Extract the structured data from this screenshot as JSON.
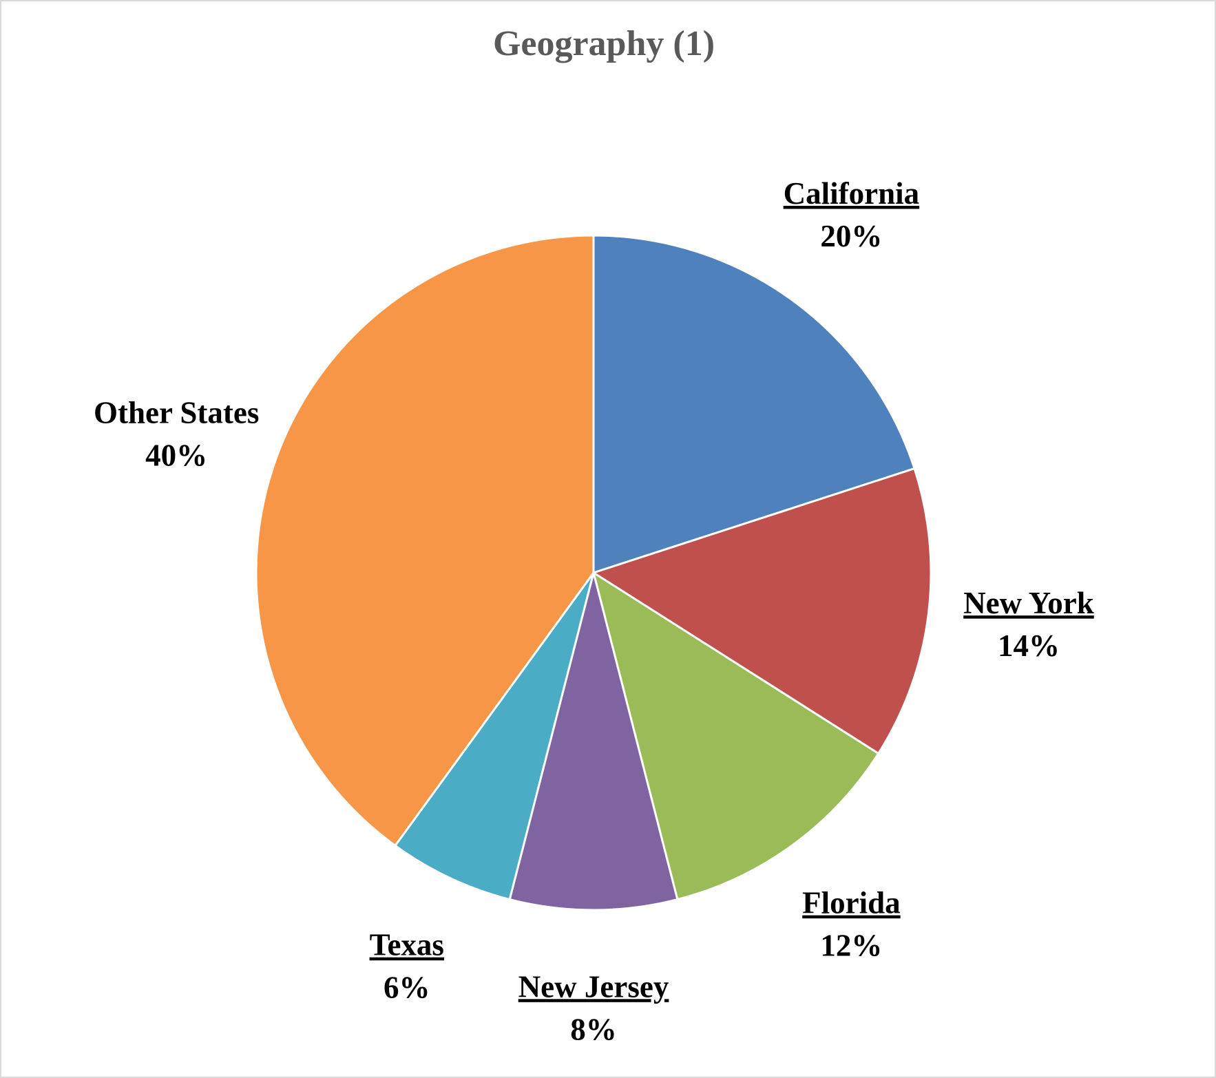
{
  "chart_data": {
    "type": "pie",
    "title": "Geography (1)",
    "categories": [
      "California",
      "New York",
      "Florida",
      "New Jersey",
      "Texas",
      "Other States"
    ],
    "values": [
      20,
      14,
      12,
      8,
      6,
      40
    ],
    "value_labels": [
      "20%",
      "14%",
      "12%",
      "8%",
      "6%",
      "40%"
    ],
    "colors": [
      "#4f81bd",
      "#c0504d",
      "#9bbb59",
      "#8064a2",
      "#4bacc6",
      "#f79646"
    ],
    "underlined": [
      true,
      true,
      true,
      true,
      true,
      false
    ]
  }
}
